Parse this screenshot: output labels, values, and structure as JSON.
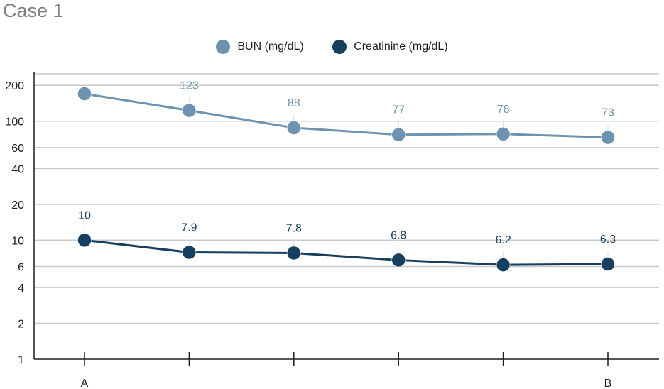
{
  "chart_data": {
    "type": "line",
    "title": "Case 1",
    "y_scale": "log",
    "ylim": [
      1,
      250
    ],
    "y_ticks": [
      1,
      2,
      4,
      6,
      10,
      20,
      40,
      60,
      100,
      200
    ],
    "categories": [
      "A",
      "",
      "",
      "",
      "",
      "B"
    ],
    "series": [
      {
        "name": "BUN (mg/dL)",
        "color": "#6c93b0",
        "values": [
          170,
          123,
          88,
          77,
          78,
          73
        ],
        "labels": [
          "",
          "123",
          "88",
          "77",
          "78",
          "73"
        ]
      },
      {
        "name": "Creatinine (mg/dL)",
        "color": "#163f5f",
        "values": [
          10,
          7.9,
          7.8,
          6.8,
          6.2,
          6.3
        ],
        "labels": [
          "10",
          "7.9",
          "7.8",
          "6.8",
          "6.2",
          "6.3"
        ]
      }
    ],
    "legend_position": "top-center",
    "grid": true
  }
}
